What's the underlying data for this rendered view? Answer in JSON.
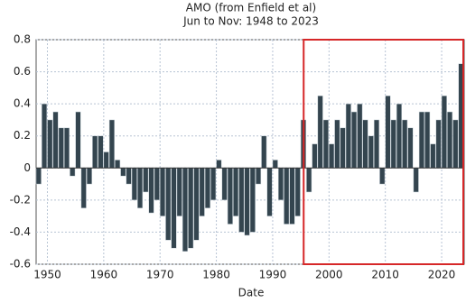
{
  "chart_data": {
    "type": "bar",
    "title": "AMO (from Enfield et al)",
    "subtitle": "Jun to Nov: 1948 to 2023",
    "xlabel": "Date",
    "x": [
      1948,
      1949,
      1950,
      1951,
      1952,
      1953,
      1954,
      1955,
      1956,
      1957,
      1958,
      1959,
      1960,
      1961,
      1962,
      1963,
      1964,
      1965,
      1966,
      1967,
      1968,
      1969,
      1970,
      1971,
      1972,
      1973,
      1974,
      1975,
      1976,
      1977,
      1978,
      1979,
      1980,
      1981,
      1982,
      1983,
      1984,
      1985,
      1986,
      1987,
      1988,
      1989,
      1990,
      1991,
      1992,
      1993,
      1994,
      1995,
      1996,
      1997,
      1998,
      1999,
      2000,
      2001,
      2002,
      2003,
      2004,
      2005,
      2006,
      2007,
      2008,
      2009,
      2010,
      2011,
      2012,
      2013,
      2014,
      2015,
      2016,
      2017,
      2018,
      2019,
      2020,
      2021,
      2022,
      2023
    ],
    "values": [
      -0.1,
      0.4,
      0.3,
      0.35,
      0.25,
      0.25,
      -0.05,
      0.35,
      -0.25,
      -0.1,
      0.2,
      0.2,
      0.1,
      0.3,
      0.05,
      -0.05,
      -0.1,
      -0.2,
      -0.25,
      -0.15,
      -0.28,
      -0.2,
      -0.3,
      -0.45,
      -0.5,
      -0.3,
      -0.52,
      -0.5,
      -0.45,
      -0.3,
      -0.25,
      -0.2,
      0.05,
      -0.2,
      -0.35,
      -0.3,
      -0.4,
      -0.42,
      -0.4,
      -0.1,
      0.2,
      -0.3,
      0.05,
      -0.2,
      -0.35,
      -0.35,
      -0.3,
      0.3,
      -0.15,
      0.15,
      0.45,
      0.3,
      0.15,
      0.3,
      0.25,
      0.4,
      0.35,
      0.4,
      0.3,
      0.2,
      0.3,
      -0.1,
      0.45,
      0.3,
      0.4,
      0.3,
      0.25,
      -0.15,
      0.35,
      0.35,
      0.15,
      0.3,
      0.45,
      0.35,
      0.3,
      0.65
    ],
    "color": "#34454f",
    "xlim": [
      1948,
      2024
    ],
    "xticks": [
      1950,
      1960,
      1970,
      1980,
      1990,
      2000,
      2010,
      2020
    ],
    "ylim": [
      -0.6,
      0.8
    ],
    "yticks": [
      -0.6,
      -0.4,
      -0.2,
      0,
      0.2,
      0.4,
      0.6,
      0.8
    ],
    "grid": true,
    "highlight_x": [
      1995.5,
      2024
    ],
    "highlight_color": "#d62728"
  }
}
